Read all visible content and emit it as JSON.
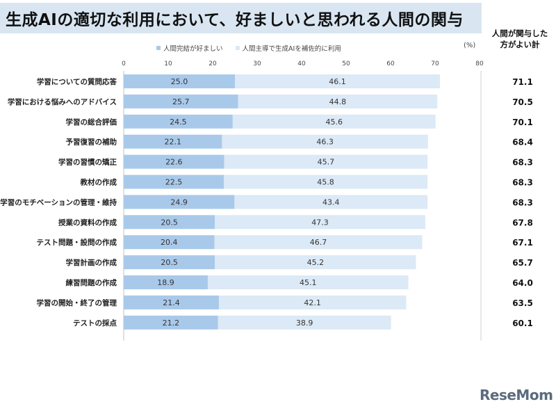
{
  "title": "生成AIの適切な利用において、好ましいと思われる人間の関与",
  "right_header_line1": "人間が関与した",
  "right_header_line2": "方がよい計",
  "unit": "(%)",
  "logo": "ReseMom",
  "colors": {
    "series1": "#a9c9ea",
    "series2": "#dce9f6",
    "title_bg": "#d9e6f2"
  },
  "chart_data": {
    "type": "bar",
    "orientation": "horizontal",
    "stacked": true,
    "categories": [
      "学習についての質問応答",
      "学習における悩みへのアドバイス",
      "学習の総合評価",
      "予習復習の補助",
      "学習の習慣の矯正",
      "教材の作成",
      "学習のモチベーションの管理・維持",
      "授業の資料の作成",
      "テスト問題・設問の作成",
      "学習計画の作成",
      "練習問題の作成",
      "学習の開始・終了の管理",
      "テストの採点"
    ],
    "series": [
      {
        "name": "人間完結が好ましい",
        "values": [
          25.0,
          25.7,
          24.5,
          22.1,
          22.6,
          22.5,
          24.9,
          20.5,
          20.4,
          20.5,
          18.9,
          21.4,
          21.2
        ]
      },
      {
        "name": "人間主導で生成AIを補佐的に利用",
        "values": [
          46.1,
          44.8,
          45.6,
          46.3,
          45.7,
          45.8,
          43.4,
          47.3,
          46.7,
          45.2,
          45.1,
          42.1,
          38.9
        ]
      }
    ],
    "totals": [
      "71.1",
      "70.5",
      "70.1",
      "68.4",
      "68.3",
      "68.3",
      "68.3",
      "67.8",
      "67.1",
      "65.7",
      "64.0",
      "63.5",
      "60.1"
    ],
    "xlim": [
      0,
      80
    ],
    "xticks": [
      "0",
      "10",
      "20",
      "30",
      "40",
      "50",
      "60",
      "70",
      "80"
    ],
    "legend_position": "top"
  }
}
